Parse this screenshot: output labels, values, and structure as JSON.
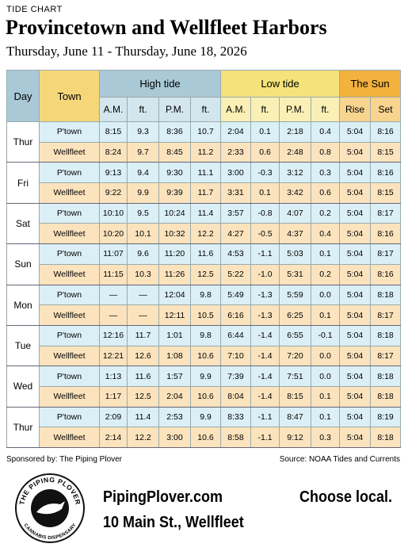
{
  "header": {
    "kicker": "TIDE CHART",
    "title": "Provincetown and Wellfleet Harbors",
    "subtitle": "Thursday, June 11 - Thursday, June 18, 2026"
  },
  "table": {
    "col_day": "Day",
    "col_town": "Town",
    "group_high": "High tide",
    "group_low": "Low tide",
    "group_sun": "The Sun",
    "sub": [
      "A.M.",
      "ft.",
      "P.M.",
      "ft.",
      "A.M.",
      "ft.",
      "P.M.",
      "ft.",
      "Rise",
      "Set"
    ],
    "days": [
      {
        "day": "Thur",
        "rows": [
          [
            "P'town",
            "8:15",
            "9.3",
            "8:36",
            "10.7",
            "2:04",
            "0.1",
            "2:18",
            "0.4",
            "5:04",
            "8:16"
          ],
          [
            "Wellfleet",
            "8:24",
            "9.7",
            "8:45",
            "11.2",
            "2:33",
            "0.6",
            "2:48",
            "0.8",
            "5:04",
            "8:15"
          ]
        ]
      },
      {
        "day": "Fri",
        "rows": [
          [
            "P'town",
            "9:13",
            "9.4",
            "9:30",
            "11.1",
            "3:00",
            "-0.3",
            "3:12",
            "0.3",
            "5:04",
            "8:16"
          ],
          [
            "Wellfleet",
            "9:22",
            "9.9",
            "9:39",
            "11.7",
            "3:31",
            "0.1",
            "3:42",
            "0.6",
            "5:04",
            "8:15"
          ]
        ]
      },
      {
        "day": "Sat",
        "rows": [
          [
            "P'town",
            "10:10",
            "9.5",
            "10:24",
            "11.4",
            "3:57",
            "-0.8",
            "4:07",
            "0.2",
            "5:04",
            "8:17"
          ],
          [
            "Wellfleet",
            "10:20",
            "10.1",
            "10:32",
            "12.2",
            "4:27",
            "-0.5",
            "4:37",
            "0.4",
            "5:04",
            "8:16"
          ]
        ]
      },
      {
        "day": "Sun",
        "rows": [
          [
            "P'town",
            "11:07",
            "9.6",
            "11:20",
            "11.6",
            "4:53",
            "-1.1",
            "5:03",
            "0.1",
            "5:04",
            "8:17"
          ],
          [
            "Wellfleet",
            "11:15",
            "10.3",
            "11:26",
            "12.5",
            "5:22",
            "-1.0",
            "5:31",
            "0.2",
            "5:04",
            "8:16"
          ]
        ]
      },
      {
        "day": "Mon",
        "rows": [
          [
            "P'town",
            "—",
            "—",
            "12:04",
            "9.8",
            "5:49",
            "-1.3",
            "5:59",
            "0.0",
            "5:04",
            "8:18"
          ],
          [
            "Wellfleet",
            "—",
            "—",
            "12:11",
            "10.5",
            "6:16",
            "-1.3",
            "6:25",
            "0.1",
            "5:04",
            "8:17"
          ]
        ]
      },
      {
        "day": "Tue",
        "rows": [
          [
            "P'town",
            "12:16",
            "11.7",
            "1:01",
            "9.8",
            "6:44",
            "-1.4",
            "6:55",
            "-0.1",
            "5:04",
            "8:18"
          ],
          [
            "Wellfleet",
            "12:21",
            "12.6",
            "1:08",
            "10.6",
            "7:10",
            "-1.4",
            "7:20",
            "0.0",
            "5:04",
            "8:17"
          ]
        ]
      },
      {
        "day": "Wed",
        "rows": [
          [
            "P'town",
            "1:13",
            "11.6",
            "1:57",
            "9.9",
            "7:39",
            "-1.4",
            "7:51",
            "0.0",
            "5:04",
            "8:18"
          ],
          [
            "Wellfleet",
            "1:17",
            "12.5",
            "2:04",
            "10.6",
            "8:04",
            "-1.4",
            "8:15",
            "0.1",
            "5:04",
            "8:18"
          ]
        ]
      },
      {
        "day": "Thur",
        "rows": [
          [
            "P'town",
            "2:09",
            "11.4",
            "2:53",
            "9.9",
            "8:33",
            "-1.1",
            "8:47",
            "0.1",
            "5:04",
            "8:19"
          ],
          [
            "Wellfleet",
            "2:14",
            "12.2",
            "3:00",
            "10.6",
            "8:58",
            "-1.1",
            "9:12",
            "0.3",
            "5:04",
            "8:18"
          ]
        ]
      }
    ]
  },
  "footer": {
    "sponsor": "Sponsored by: The Piping Plover",
    "source": "Source: NOAA Tides and Currents"
  },
  "ad": {
    "logo_top": "THE PIPING PLOVER",
    "logo_bottom": "CANNABIS DISPENSARY",
    "url": "PipingPlover.com",
    "address": "10 Main St., Wellfleet",
    "slogan": "Choose local."
  }
}
